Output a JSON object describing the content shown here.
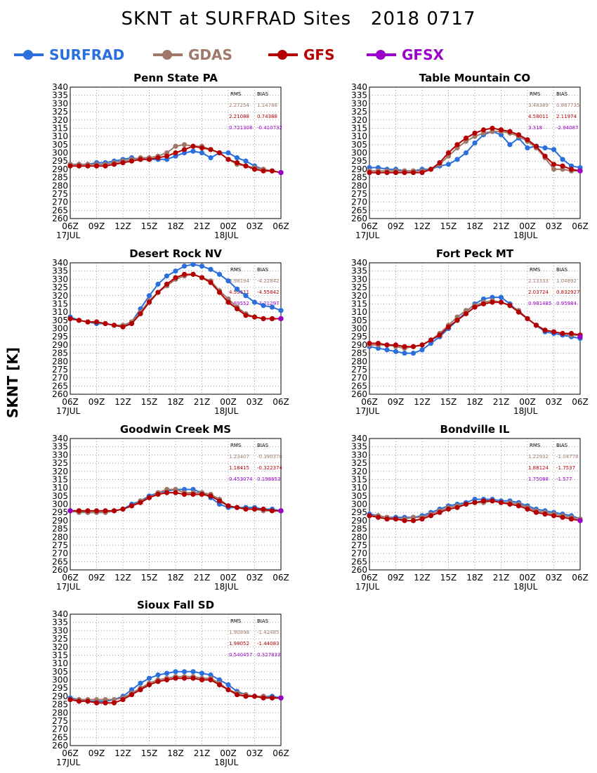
{
  "header": {
    "title": "SKNT at SURFRAD Sites   2018 0717"
  },
  "axis_label": "SKNT [K]",
  "legend": [
    {
      "label": "SURFRAD",
      "color": "#2a6fdb"
    },
    {
      "label": "GDAS",
      "color": "#a0786a"
    },
    {
      "label": "GFS",
      "color": "#b40000"
    },
    {
      "label": "GFSX",
      "color": "#9a00c8"
    }
  ],
  "stats_headers": {
    "rms": "RMS",
    "bias": "BIAS"
  },
  "x_tick_labels": [
    "06Z",
    "09Z",
    "12Z",
    "15Z",
    "18Z",
    "21Z",
    "00Z",
    "03Z",
    "06Z"
  ],
  "x_date_labels": [
    "17JUL",
    "18JUL"
  ],
  "chart_data": [
    {
      "type": "line",
      "title": "Penn State PA",
      "ylim": [
        260,
        340
      ],
      "yticks_step": 5,
      "x": [
        0,
        1,
        2,
        3,
        4,
        5,
        6,
        7,
        8,
        9,
        10,
        11,
        12,
        13,
        14,
        15,
        16,
        17,
        18,
        19,
        20,
        21,
        22,
        23,
        24
      ],
      "stats": [
        [
          "2.27254",
          "1.14788"
        ],
        [
          "2.21088",
          "0.74388"
        ],
        [
          "0.721308",
          "-0.410732"
        ]
      ],
      "series": [
        {
          "name": "SURFRAD",
          "values": [
            293,
            293,
            293,
            294,
            294,
            295,
            296,
            297,
            296,
            296,
            296,
            296,
            298,
            300,
            301,
            300,
            297,
            300,
            300,
            297,
            295,
            292,
            290,
            289,
            288
          ]
        },
        {
          "name": "GDAS",
          "values": [
            293,
            293,
            293,
            293,
            293,
            294,
            295,
            296,
            297,
            297,
            298,
            300,
            304,
            305,
            304,
            304,
            302,
            300,
            296,
            293,
            292,
            291,
            290,
            289,
            288
          ]
        },
        {
          "name": "GFS",
          "values": [
            292,
            292,
            292,
            292,
            292,
            293,
            294,
            295,
            296,
            296,
            297,
            298,
            300,
            302,
            304,
            303,
            302,
            300,
            296,
            294,
            292,
            290,
            289,
            289,
            288
          ]
        },
        {
          "name": "GFSX",
          "values": [
            null,
            null,
            null,
            null,
            null,
            null,
            null,
            null,
            null,
            null,
            null,
            null,
            null,
            null,
            null,
            null,
            null,
            null,
            null,
            null,
            null,
            null,
            null,
            null,
            288
          ]
        }
      ]
    },
    {
      "type": "line",
      "title": "Table Mountain CO",
      "ylim": [
        260,
        340
      ],
      "yticks_step": 5,
      "x": [
        0,
        1,
        2,
        3,
        4,
        5,
        6,
        7,
        8,
        9,
        10,
        11,
        12,
        13,
        14,
        15,
        16,
        17,
        18,
        19,
        20,
        21,
        22,
        23,
        24
      ],
      "stats": [
        [
          "3.48389",
          "0.867735"
        ],
        [
          "4.58011",
          "2.11974"
        ],
        [
          "3.318",
          "-2.94087"
        ]
      ],
      "series": [
        {
          "name": "SURFRAD",
          "values": [
            291,
            291,
            290,
            290,
            289,
            289,
            290,
            290,
            292,
            293,
            296,
            300,
            306,
            311,
            313,
            311,
            305,
            309,
            303,
            304,
            303,
            302,
            296,
            292,
            291
          ]
        },
        {
          "name": "GDAS",
          "values": [
            289,
            289,
            289,
            289,
            289,
            289,
            289,
            290,
            293,
            298,
            303,
            307,
            310,
            312,
            313,
            313,
            312,
            310,
            307,
            303,
            297,
            290,
            290,
            289,
            289
          ]
        },
        {
          "name": "GFS",
          "values": [
            288,
            288,
            288,
            288,
            288,
            288,
            288,
            290,
            294,
            300,
            305,
            309,
            312,
            314,
            315,
            314,
            313,
            311,
            308,
            304,
            298,
            293,
            292,
            290,
            289
          ]
        },
        {
          "name": "GFSX",
          "values": [
            null,
            null,
            null,
            null,
            null,
            null,
            null,
            null,
            null,
            null,
            null,
            null,
            null,
            null,
            null,
            null,
            null,
            null,
            null,
            null,
            null,
            null,
            null,
            null,
            289
          ]
        }
      ]
    },
    {
      "type": "line",
      "title": "Desert Rock NV",
      "ylim": [
        260,
        340
      ],
      "yticks_step": 5,
      "x": [
        0,
        1,
        2,
        3,
        4,
        5,
        6,
        7,
        8,
        9,
        10,
        11,
        12,
        13,
        14,
        15,
        16,
        17,
        18,
        19,
        20,
        21,
        22,
        23,
        24
      ],
      "stats": [
        [
          "3.98194",
          "-4.22842"
        ],
        [
          "4.59611",
          "-4.55842"
        ],
        [
          "3.89552",
          "-3.21297"
        ]
      ],
      "series": [
        {
          "name": "SURFRAD",
          "values": [
            307,
            305,
            304,
            303,
            303,
            302,
            301,
            304,
            312,
            320,
            327,
            332,
            335,
            338,
            339,
            338,
            336,
            333,
            329,
            324,
            320,
            316,
            314,
            313,
            311
          ]
        },
        {
          "name": "GDAS",
          "values": [
            306,
            305,
            304,
            304,
            303,
            302,
            302,
            304,
            310,
            317,
            322,
            326,
            330,
            332,
            333,
            331,
            329,
            323,
            318,
            313,
            309,
            307,
            306,
            306,
            306
          ]
        },
        {
          "name": "GFS",
          "values": [
            306,
            305,
            304,
            304,
            303,
            302,
            301,
            303,
            309,
            316,
            322,
            327,
            331,
            333,
            333,
            331,
            328,
            322,
            316,
            312,
            308,
            307,
            306,
            306,
            306
          ]
        },
        {
          "name": "GFSX",
          "values": [
            null,
            null,
            null,
            null,
            null,
            null,
            null,
            null,
            null,
            null,
            null,
            null,
            null,
            null,
            null,
            null,
            null,
            null,
            null,
            null,
            null,
            null,
            null,
            null,
            306
          ]
        }
      ]
    },
    {
      "type": "line",
      "title": "Fort Peck MT",
      "ylim": [
        260,
        340
      ],
      "yticks_step": 5,
      "x": [
        0,
        1,
        2,
        3,
        4,
        5,
        6,
        7,
        8,
        9,
        10,
        11,
        12,
        13,
        14,
        15,
        16,
        17,
        18,
        19,
        20,
        21,
        22,
        23,
        24
      ],
      "stats": [
        [
          "2.13333",
          "1.04892"
        ],
        [
          "2.03724",
          "0.832927"
        ],
        [
          "0.981485",
          "0.95984"
        ]
      ],
      "series": [
        {
          "name": "SURFRAD",
          "values": [
            289,
            288,
            287,
            286,
            285,
            285,
            287,
            291,
            295,
            300,
            305,
            310,
            315,
            318,
            319,
            319,
            315,
            310,
            306,
            302,
            298,
            297,
            296,
            295,
            294
          ]
        },
        {
          "name": "GDAS",
          "values": [
            290,
            290,
            290,
            289,
            288,
            289,
            290,
            293,
            297,
            302,
            307,
            311,
            314,
            316,
            317,
            316,
            314,
            311,
            306,
            302,
            299,
            298,
            297,
            296,
            296
          ]
        },
        {
          "name": "GFS",
          "values": [
            291,
            291,
            290,
            290,
            289,
            289,
            290,
            293,
            296,
            301,
            305,
            309,
            313,
            315,
            316,
            316,
            314,
            310,
            306,
            302,
            299,
            298,
            297,
            297,
            296
          ]
        },
        {
          "name": "GFSX",
          "values": [
            null,
            null,
            null,
            null,
            null,
            null,
            null,
            null,
            null,
            null,
            null,
            null,
            null,
            null,
            null,
            null,
            null,
            null,
            null,
            null,
            null,
            null,
            null,
            null,
            295
          ]
        }
      ]
    },
    {
      "type": "line",
      "title": "Goodwin Creek MS",
      "ylim": [
        260,
        340
      ],
      "yticks_step": 5,
      "x": [
        0,
        1,
        2,
        3,
        4,
        5,
        6,
        7,
        8,
        9,
        10,
        11,
        12,
        13,
        14,
        15,
        16,
        17,
        18,
        19,
        20,
        21,
        22,
        23,
        24
      ],
      "stats": [
        [
          "1.23407",
          "-0.390378"
        ],
        [
          "1.18415",
          "-0.322374"
        ],
        [
          "0.453074",
          "0.198853"
        ]
      ],
      "series": [
        {
          "name": "SURFRAD",
          "values": [
            296,
            296,
            295,
            295,
            295,
            296,
            297,
            300,
            302,
            305,
            307,
            308,
            309,
            309,
            309,
            307,
            304,
            300,
            298,
            298,
            298,
            298,
            297,
            297,
            296
          ]
        },
        {
          "name": "GDAS",
          "values": [
            296,
            295,
            295,
            295,
            295,
            296,
            297,
            299,
            302,
            304,
            307,
            309,
            309,
            307,
            307,
            307,
            306,
            303,
            299,
            298,
            297,
            297,
            296,
            296,
            296
          ]
        },
        {
          "name": "GFS",
          "values": [
            296,
            296,
            296,
            296,
            296,
            296,
            297,
            299,
            301,
            304,
            306,
            307,
            307,
            306,
            306,
            306,
            305,
            302,
            299,
            298,
            297,
            297,
            297,
            296,
            296
          ]
        },
        {
          "name": "GFSX",
          "values": [
            296,
            null,
            null,
            null,
            null,
            null,
            null,
            null,
            null,
            null,
            null,
            null,
            null,
            null,
            null,
            null,
            null,
            null,
            null,
            null,
            null,
            null,
            null,
            null,
            296
          ]
        }
      ]
    },
    {
      "type": "line",
      "title": "Bondville IL",
      "ylim": [
        260,
        340
      ],
      "yticks_step": 5,
      "x": [
        0,
        1,
        2,
        3,
        4,
        5,
        6,
        7,
        8,
        9,
        10,
        11,
        12,
        13,
        14,
        15,
        16,
        17,
        18,
        19,
        20,
        21,
        22,
        23,
        24
      ],
      "stats": [
        [
          "1.22932",
          "-1.04778"
        ],
        [
          "1.88124",
          "-1.7537"
        ],
        [
          "1.75088",
          "-1.577"
        ]
      ],
      "series": [
        {
          "name": "SURFRAD",
          "values": [
            294,
            293,
            292,
            292,
            292,
            292,
            293,
            295,
            297,
            299,
            300,
            301,
            303,
            303,
            303,
            302,
            302,
            301,
            299,
            297,
            296,
            295,
            294,
            293,
            291
          ]
        },
        {
          "name": "GDAS",
          "values": [
            293,
            293,
            292,
            291,
            291,
            292,
            292,
            294,
            296,
            298,
            299,
            300,
            301,
            301,
            302,
            301,
            301,
            300,
            298,
            296,
            295,
            294,
            293,
            292,
            291
          ]
        },
        {
          "name": "GFS",
          "values": [
            293,
            292,
            291,
            291,
            290,
            290,
            291,
            293,
            295,
            297,
            298,
            300,
            301,
            302,
            302,
            301,
            300,
            299,
            297,
            295,
            294,
            293,
            292,
            291,
            290
          ]
        },
        {
          "name": "GFSX",
          "values": [
            null,
            null,
            null,
            null,
            null,
            null,
            null,
            null,
            null,
            null,
            null,
            null,
            null,
            null,
            null,
            null,
            null,
            null,
            null,
            null,
            null,
            null,
            null,
            null,
            290
          ]
        }
      ]
    },
    {
      "type": "line",
      "title": "Sioux Fall SD",
      "ylim": [
        260,
        340
      ],
      "yticks_step": 5,
      "x": [
        0,
        1,
        2,
        3,
        4,
        5,
        6,
        7,
        8,
        9,
        10,
        11,
        12,
        13,
        14,
        15,
        16,
        17,
        18,
        19,
        20,
        21,
        22,
        23,
        24
      ],
      "stats": [
        [
          "1.90898",
          "-1.42485"
        ],
        [
          "1.98052",
          "-1.44083"
        ],
        [
          "0.540457",
          "0.327833"
        ]
      ],
      "series": [
        {
          "name": "SURFRAD",
          "values": [
            289,
            288,
            287,
            287,
            287,
            288,
            290,
            294,
            298,
            301,
            303,
            304,
            305,
            305,
            305,
            304,
            303,
            300,
            297,
            293,
            291,
            290,
            290,
            290,
            289
          ]
        },
        {
          "name": "GDAS",
          "values": [
            288,
            288,
            288,
            288,
            288,
            288,
            289,
            292,
            295,
            298,
            300,
            301,
            302,
            302,
            302,
            301,
            301,
            298,
            294,
            292,
            291,
            290,
            290,
            289,
            289
          ]
        },
        {
          "name": "GFS",
          "values": [
            288,
            287,
            287,
            286,
            286,
            286,
            288,
            291,
            294,
            297,
            299,
            300,
            301,
            301,
            301,
            300,
            300,
            297,
            294,
            291,
            290,
            290,
            289,
            289,
            289
          ]
        },
        {
          "name": "GFSX",
          "values": [
            null,
            null,
            null,
            null,
            null,
            null,
            null,
            null,
            null,
            null,
            null,
            null,
            null,
            null,
            null,
            null,
            null,
            null,
            null,
            null,
            null,
            null,
            null,
            null,
            289
          ]
        }
      ]
    }
  ]
}
